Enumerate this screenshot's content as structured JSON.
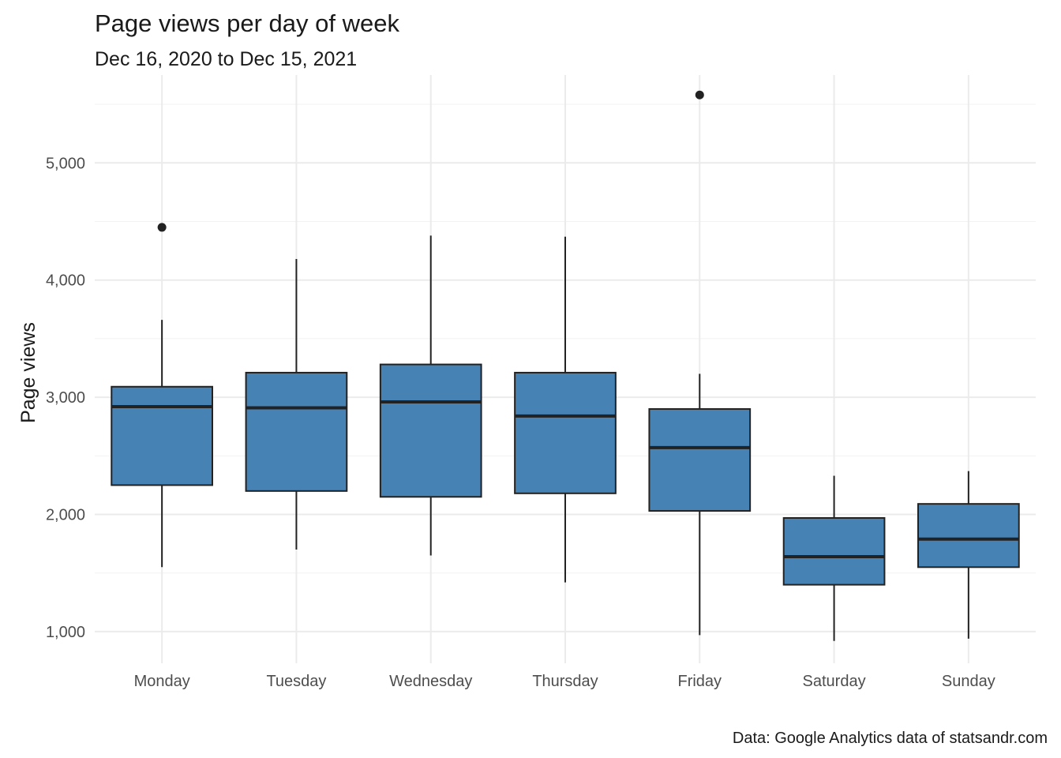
{
  "chart_data": {
    "type": "boxplot",
    "title": "Page views per day of week",
    "subtitle": "Dec 16, 2020 to Dec 15, 2021",
    "xlabel": "",
    "ylabel": "Page views",
    "caption": "Data: Google Analytics data of statsandr.com",
    "ylim": [
      730,
      5750
    ],
    "yticks": [
      1000,
      2000,
      3000,
      4000,
      5000
    ],
    "ytick_labels": [
      "1,000",
      "2,000",
      "3,000",
      "4,000",
      "5,000"
    ],
    "grid": true,
    "fill_color": "#4682b4",
    "categories": [
      "Monday",
      "Tuesday",
      "Wednesday",
      "Thursday",
      "Friday",
      "Saturday",
      "Sunday"
    ],
    "boxes": [
      {
        "whisker_low": 1550,
        "q1": 2250,
        "median": 2920,
        "q3": 3090,
        "whisker_high": 3660,
        "outliers": [
          4450
        ]
      },
      {
        "whisker_low": 1700,
        "q1": 2200,
        "median": 2910,
        "q3": 3210,
        "whisker_high": 4180,
        "outliers": []
      },
      {
        "whisker_low": 1650,
        "q1": 2150,
        "median": 2960,
        "q3": 3280,
        "whisker_high": 4380,
        "outliers": []
      },
      {
        "whisker_low": 1420,
        "q1": 2180,
        "median": 2840,
        "q3": 3210,
        "whisker_high": 4370,
        "outliers": []
      },
      {
        "whisker_low": 970,
        "q1": 2030,
        "median": 2570,
        "q3": 2900,
        "whisker_high": 3200,
        "outliers": [
          5580
        ]
      },
      {
        "whisker_low": 920,
        "q1": 1400,
        "median": 1640,
        "q3": 1970,
        "whisker_high": 2330,
        "outliers": []
      },
      {
        "whisker_low": 940,
        "q1": 1550,
        "median": 1790,
        "q3": 2090,
        "whisker_high": 2370,
        "outliers": []
      }
    ]
  }
}
